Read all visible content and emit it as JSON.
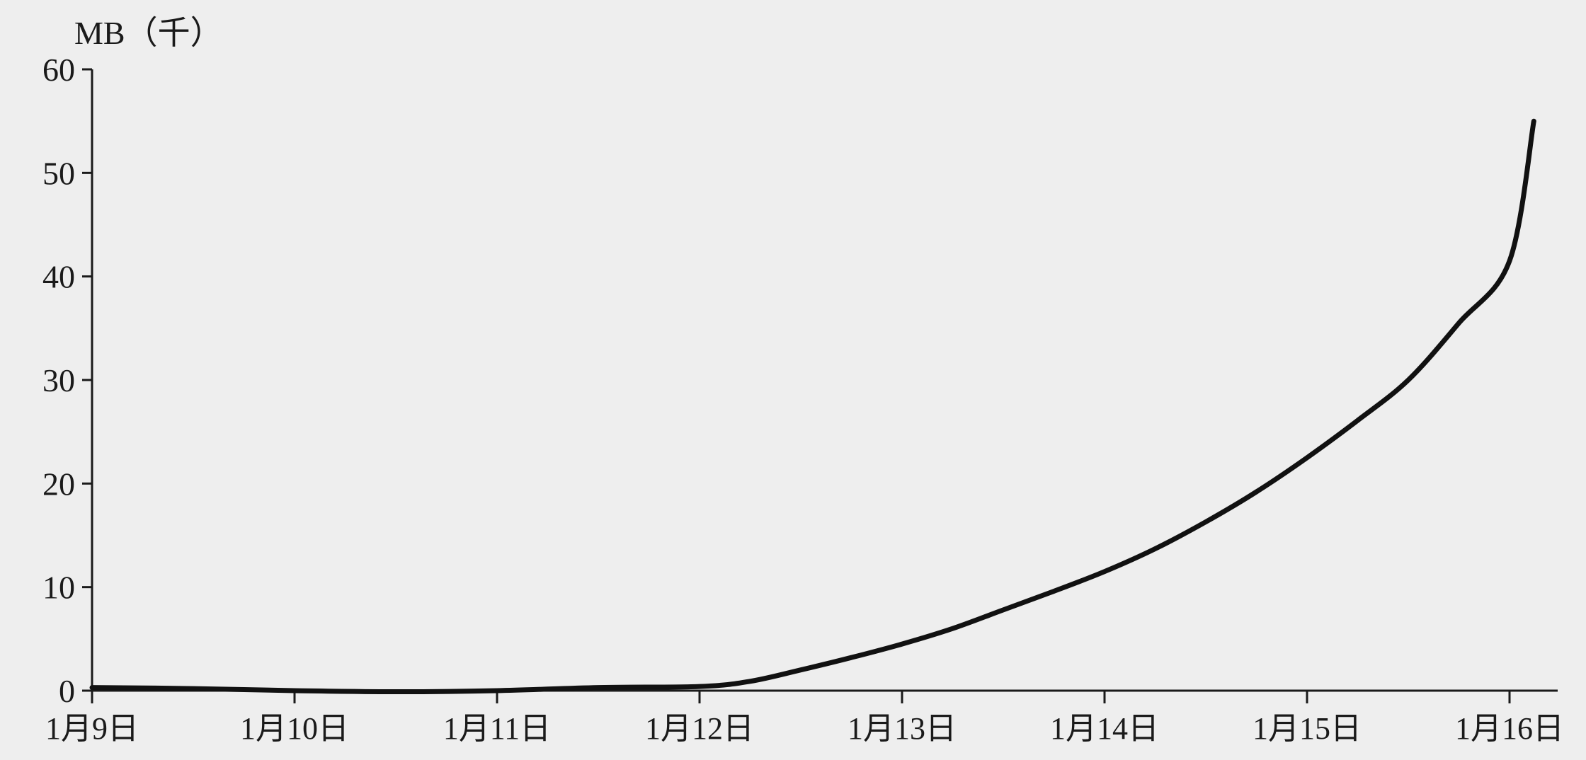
{
  "chart_data": {
    "type": "line",
    "title": "",
    "xlabel": "",
    "ylabel": "MB（千）",
    "ylim": [
      0,
      60
    ],
    "yticks": [
      0,
      10,
      20,
      30,
      40,
      50,
      60
    ],
    "ytick_labels": [
      "0",
      "10",
      "20",
      "30",
      "40",
      "50",
      "60"
    ],
    "categories": [
      "1月9日",
      "1月10日",
      "1月11日",
      "1月12日",
      "1月13日",
      "1月14日",
      "1月15日",
      "1月16日"
    ],
    "grid": false,
    "legend": "none",
    "series": [
      {
        "color": "#111111",
        "x": [
          0,
          0.5,
          1,
          1.5,
          2,
          2.5,
          3,
          3.25,
          3.5,
          3.75,
          4,
          4.25,
          4.5,
          4.75,
          5,
          5.25,
          5.5,
          5.75,
          6,
          6.25,
          6.5,
          6.75,
          7,
          7.12
        ],
        "y": [
          0.3,
          0.2,
          0.0,
          -0.1,
          0.0,
          0.3,
          0.4,
          0.9,
          2.0,
          3.2,
          4.5,
          6.0,
          7.8,
          9.6,
          11.5,
          13.7,
          16.3,
          19.2,
          22.5,
          26.1,
          30.0,
          35.5,
          41.5,
          55.0
        ]
      }
    ]
  }
}
